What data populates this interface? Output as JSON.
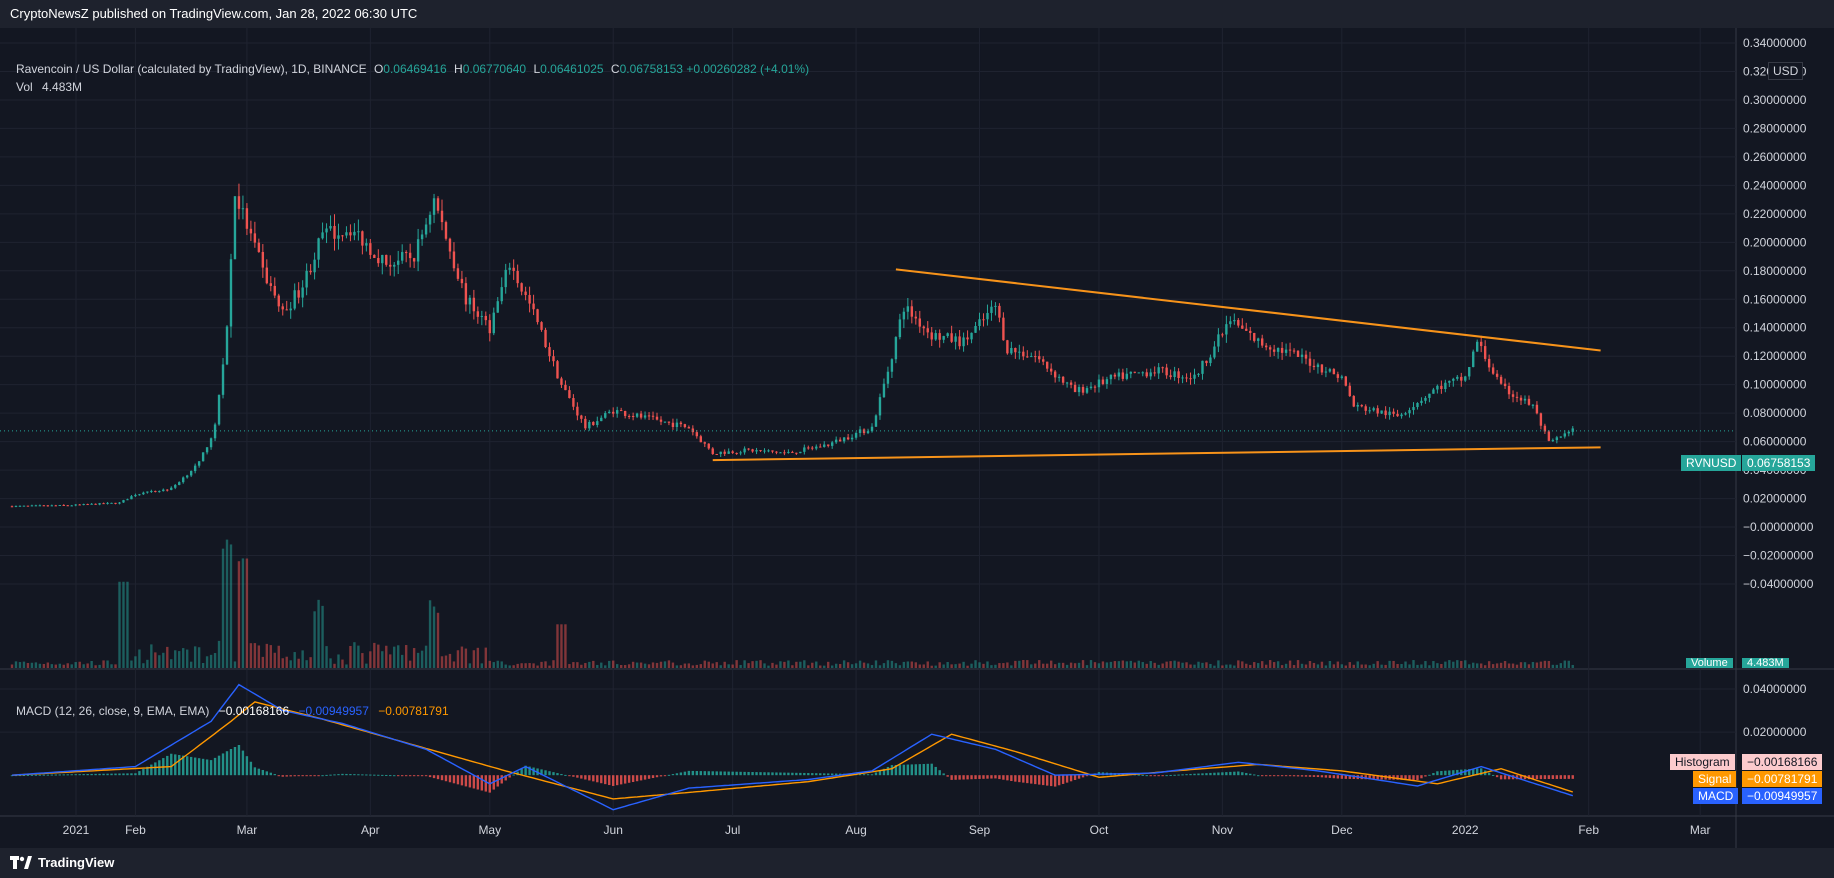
{
  "header": {
    "publisher": "CryptoNewsZ published on TradingView.com, Jan 28, 2022 06:30 UTC"
  },
  "legend": {
    "symbol_desc": "Ravencoin / US Dollar (calculated by TradingView), 1D, BINANCE",
    "o_label": "O",
    "o_value": "0.06469416",
    "h_label": "H",
    "h_value": "0.06770640",
    "l_label": "L",
    "l_value": "0.06461025",
    "c_label": "C",
    "c_value": "0.06758153",
    "change": "+0.00260282 (+4.01%)",
    "vol_label": "Vol",
    "vol_value": "4.483M"
  },
  "macd_legend": {
    "label": "MACD (12, 26, close, 9, EMA, EMA)",
    "hist_value": "−0.00168166",
    "macd_value": "−0.00949957",
    "signal_value": "−0.00781791"
  },
  "price_axis": {
    "currency": "USD",
    "ticks": [
      "0.34000000",
      "0.32000000",
      "0.30000000",
      "0.28000000",
      "0.26000000",
      "0.24000000",
      "0.22000000",
      "0.20000000",
      "0.18000000",
      "0.16000000",
      "0.14000000",
      "0.12000000",
      "0.10000000",
      "0.08000000",
      "0.06000000",
      "0.04000000",
      "0.02000000",
      "−0.00000000",
      "−0.02000000",
      "−0.04000000"
    ],
    "last_symbol": "RVNUSD",
    "last_price": "0.06758153",
    "volume_label": "Volume",
    "volume_value": "4.483M"
  },
  "macd_axis": {
    "ticks": [
      "0.04000000",
      "0.02000000"
    ],
    "histogram_label": "Histogram",
    "histogram_value": "−0.00168166",
    "signal_label": "Signal",
    "signal_value": "−0.00781791",
    "macd_label": "MACD",
    "macd_value": "−0.00949957"
  },
  "time_axis": {
    "labels": [
      "2021",
      "Feb",
      "Mar",
      "Apr",
      "May",
      "Jun",
      "Jul",
      "Aug",
      "Sep",
      "Oct",
      "Nov",
      "Dec",
      "2022",
      "Feb",
      "Mar"
    ]
  },
  "footer": {
    "brand": "TradingView"
  },
  "colors": {
    "up": "#26a69a",
    "down": "#ef5350",
    "trendline": "#f7931a",
    "macd": "#2962ff",
    "signal": "#ff9800",
    "background": "#131722"
  },
  "chart_data": {
    "type": "candlestick",
    "interval": "1D",
    "ylim": [
      -0.04,
      0.34
    ],
    "x_range": [
      "2021-01-01",
      "2022-03-10"
    ],
    "price_path": [
      [
        "2021-01-01",
        0.0146
      ],
      [
        "2021-01-15",
        0.0152
      ],
      [
        "2021-01-28",
        0.017
      ],
      [
        "2021-02-01",
        0.023
      ],
      [
        "2021-02-10",
        0.027
      ],
      [
        "2021-02-17",
        0.045
      ],
      [
        "2021-02-21",
        0.07
      ],
      [
        "2021-02-24",
        0.14
      ],
      [
        "2021-02-26",
        0.235
      ],
      [
        "2021-03-05",
        0.18
      ],
      [
        "2021-03-10",
        0.15
      ],
      [
        "2021-03-15",
        0.17
      ],
      [
        "2021-03-20",
        0.205
      ],
      [
        "2021-03-27",
        0.21
      ],
      [
        "2021-04-05",
        0.185
      ],
      [
        "2021-04-12",
        0.19
      ],
      [
        "2021-04-17",
        0.23
      ],
      [
        "2021-04-25",
        0.16
      ],
      [
        "2021-05-01",
        0.14
      ],
      [
        "2021-05-06",
        0.185
      ],
      [
        "2021-05-12",
        0.15
      ],
      [
        "2021-05-19",
        0.1
      ],
      [
        "2021-05-25",
        0.07
      ],
      [
        "2021-06-01",
        0.082
      ],
      [
        "2021-06-10",
        0.076
      ],
      [
        "2021-06-20",
        0.07
      ],
      [
        "2021-06-26",
        0.052
      ],
      [
        "2021-07-05",
        0.054
      ],
      [
        "2021-07-15",
        0.052
      ],
      [
        "2021-07-25",
        0.058
      ],
      [
        "2021-08-05",
        0.07
      ],
      [
        "2021-08-09",
        0.11
      ],
      [
        "2021-08-13",
        0.155
      ],
      [
        "2021-08-20",
        0.135
      ],
      [
        "2021-08-28",
        0.13
      ],
      [
        "2021-09-05",
        0.155
      ],
      [
        "2021-09-08",
        0.125
      ],
      [
        "2021-09-15",
        0.12
      ],
      [
        "2021-09-25",
        0.095
      ],
      [
        "2021-10-05",
        0.105
      ],
      [
        "2021-10-15",
        0.11
      ],
      [
        "2021-10-25",
        0.105
      ],
      [
        "2021-11-03",
        0.145
      ],
      [
        "2021-11-10",
        0.13
      ],
      [
        "2021-11-20",
        0.12
      ],
      [
        "2021-12-01",
        0.105
      ],
      [
        "2021-12-04",
        0.085
      ],
      [
        "2021-12-15",
        0.078
      ],
      [
        "2021-12-25",
        0.098
      ],
      [
        "2022-01-01",
        0.105
      ],
      [
        "2022-01-04",
        0.13
      ],
      [
        "2022-01-10",
        0.098
      ],
      [
        "2022-01-18",
        0.085
      ],
      [
        "2022-01-22",
        0.059
      ],
      [
        "2022-01-28",
        0.0676
      ]
    ],
    "volume_spikes": [
      [
        "2021-02-24",
        1.0
      ],
      [
        "2021-02-28",
        0.85
      ],
      [
        "2021-01-29",
        0.75
      ],
      [
        "2021-03-19",
        0.45
      ],
      [
        "2021-04-17",
        0.42
      ],
      [
        "2021-05-19",
        0.38
      ]
    ],
    "trendlines": [
      {
        "from": [
          "2021-08-11",
          0.181
        ],
        "to": [
          "2022-02-04",
          0.124
        ]
      },
      {
        "from": [
          "2021-06-26",
          0.047
        ],
        "to": [
          "2022-02-04",
          0.056
        ]
      }
    ],
    "macd_ylim": [
      -0.018,
      0.046
    ],
    "macd_path": [
      [
        "2021-01-01",
        0.0
      ],
      [
        "2021-02-01",
        0.004
      ],
      [
        "2021-02-20",
        0.025
      ],
      [
        "2021-02-27",
        0.042
      ],
      [
        "2021-03-10",
        0.03
      ],
      [
        "2021-03-25",
        0.024
      ],
      [
        "2021-04-15",
        0.012
      ],
      [
        "2021-05-01",
        -0.004
      ],
      [
        "2021-05-10",
        0.004
      ],
      [
        "2021-06-01",
        -0.016
      ],
      [
        "2021-06-20",
        -0.006
      ],
      [
        "2021-07-20",
        -0.002
      ],
      [
        "2021-08-05",
        0.002
      ],
      [
        "2021-08-20",
        0.019
      ],
      [
        "2021-09-05",
        0.012
      ],
      [
        "2021-09-20",
        0.0
      ],
      [
        "2021-10-15",
        0.001
      ],
      [
        "2021-11-05",
        0.006
      ],
      [
        "2021-11-25",
        0.002
      ],
      [
        "2021-12-20",
        -0.005
      ],
      [
        "2022-01-05",
        0.004
      ],
      [
        "2022-01-28",
        -0.0095
      ]
    ],
    "signal_path": [
      [
        "2021-01-01",
        0.0
      ],
      [
        "2021-02-10",
        0.004
      ],
      [
        "2021-02-25",
        0.025
      ],
      [
        "2021-03-03",
        0.034
      ],
      [
        "2021-03-20",
        0.026
      ],
      [
        "2021-04-10",
        0.015
      ],
      [
        "2021-05-05",
        0.002
      ],
      [
        "2021-06-01",
        -0.011
      ],
      [
        "2021-06-20",
        -0.008
      ],
      [
        "2021-07-20",
        -0.003
      ],
      [
        "2021-08-10",
        0.003
      ],
      [
        "2021-08-25",
        0.019
      ],
      [
        "2021-09-10",
        0.011
      ],
      [
        "2021-10-01",
        -0.001
      ],
      [
        "2021-10-20",
        0.002
      ],
      [
        "2021-11-10",
        0.005
      ],
      [
        "2021-12-01",
        0.002
      ],
      [
        "2021-12-25",
        -0.004
      ],
      [
        "2022-01-10",
        0.003
      ],
      [
        "2022-01-28",
        -0.0078
      ]
    ]
  }
}
